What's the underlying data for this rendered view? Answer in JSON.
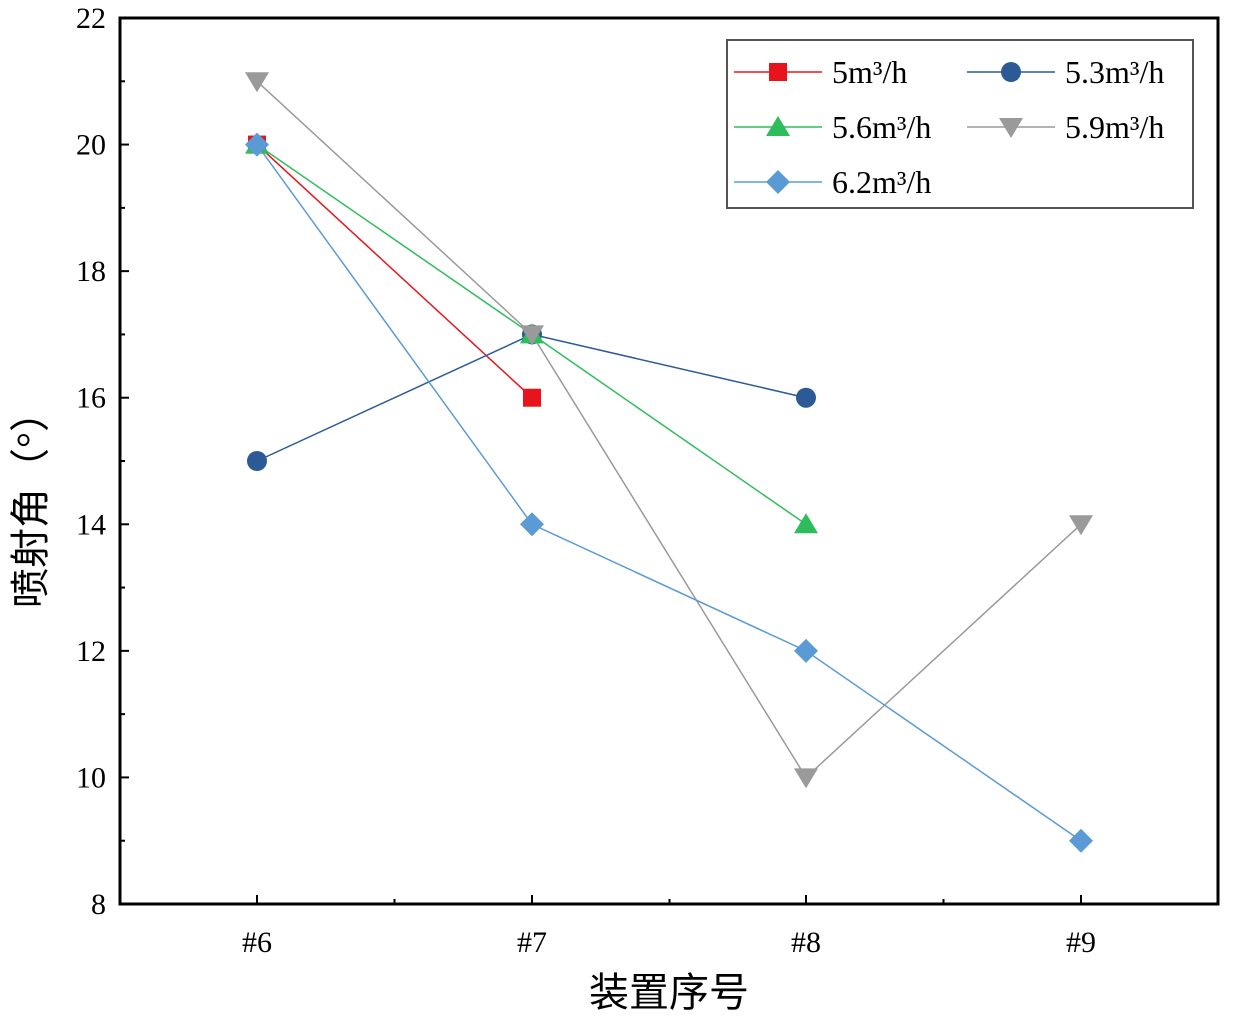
{
  "chart_data": {
    "type": "line",
    "title": "",
    "xlabel": "装置序号",
    "ylabel": "喷射角（°）",
    "categories": [
      "#6",
      "#7",
      "#8",
      "#9"
    ],
    "ylim": [
      8,
      22
    ],
    "yticks": [
      8,
      10,
      12,
      14,
      16,
      18,
      20,
      22
    ],
    "legend_position": "top-right",
    "series": [
      {
        "name": "5m³/h",
        "color": "#e8141c",
        "marker": "square",
        "values": [
          20,
          16,
          null,
          null
        ]
      },
      {
        "name": "5.3m³/h",
        "color": "#2c5a96",
        "marker": "circle",
        "values": [
          15,
          17,
          16,
          null
        ]
      },
      {
        "name": "5.6m³/h",
        "color": "#2ebd5b",
        "marker": "triangle-up",
        "values": [
          20,
          17,
          14,
          null
        ]
      },
      {
        "name": "5.9m³/h",
        "color": "#9a9a9a",
        "marker": "triangle-down",
        "values": [
          21,
          17,
          10,
          14
        ]
      },
      {
        "name": "6.2m³/h",
        "color": "#5b9bd5",
        "marker": "diamond",
        "values": [
          20,
          14,
          12,
          9
        ]
      }
    ]
  }
}
